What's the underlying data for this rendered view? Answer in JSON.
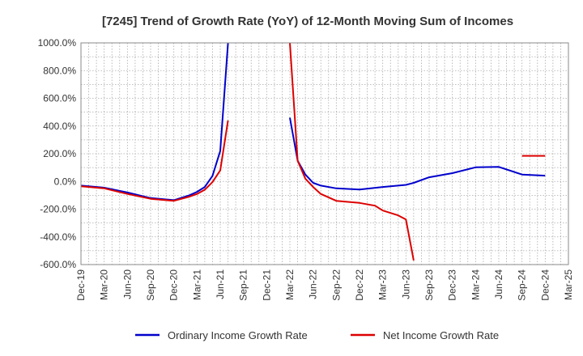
{
  "chart_data": {
    "type": "line",
    "title": "[7245]  Trend of Growth Rate (YoY) of 12-Month Moving Sum of Incomes",
    "xlabel": "",
    "ylabel": "",
    "ylim": [
      -600,
      1000
    ],
    "y_ticks": [
      1000,
      800,
      600,
      400,
      200,
      0,
      -200,
      -400,
      -600
    ],
    "y_tick_labels": [
      "1000.0%",
      "800.0%",
      "600.0%",
      "400.0%",
      "200.0%",
      "0.0%",
      "-200.0%",
      "-400.0%",
      "-600.0%"
    ],
    "x_tick_labels": [
      "Dec-19",
      "Mar-20",
      "Jun-20",
      "Sep-20",
      "Dec-20",
      "Mar-21",
      "Jun-21",
      "Sep-21",
      "Dec-21",
      "Mar-22",
      "Jun-22",
      "Sep-22",
      "Dec-22",
      "Mar-23",
      "Jun-23",
      "Sep-23",
      "Dec-23",
      "Mar-24",
      "Jun-24",
      "Sep-24",
      "Dec-24",
      "Mar-25"
    ],
    "grid": true,
    "legend_position": "bottom",
    "series": [
      {
        "name": "Ordinary Income Growth Rate",
        "color": "#0000cc",
        "points": [
          [
            "Dec-19",
            -30
          ],
          [
            "Mar-20",
            -45
          ],
          [
            "Jun-20",
            -80
          ],
          [
            "Sep-20",
            -120
          ],
          [
            "Dec-20",
            -135
          ],
          [
            "Jan-21",
            -118
          ],
          [
            "Feb-21",
            -100
          ],
          [
            "Mar-21",
            -75
          ],
          [
            "Apr-21",
            -40
          ],
          [
            "May-21",
            40
          ],
          [
            "Jun-21",
            220
          ],
          [
            "Jul-21",
            1000
          ]
        ],
        "points_2": [
          [
            "Mar-22",
            460
          ],
          [
            "Apr-22",
            150
          ],
          [
            "May-22",
            50
          ],
          [
            "Jun-22",
            -10
          ],
          [
            "Jul-22",
            -30
          ],
          [
            "Sep-22",
            -50
          ],
          [
            "Dec-22",
            -58
          ],
          [
            "Mar-23",
            -40
          ],
          [
            "Jun-23",
            -25
          ],
          [
            "Jul-23",
            -10
          ],
          [
            "Sep-23",
            30
          ],
          [
            "Dec-23",
            60
          ],
          [
            "Mar-24",
            102
          ],
          [
            "Jun-24",
            105
          ],
          [
            "Sep-24",
            50
          ],
          [
            "Dec-24",
            42
          ]
        ]
      },
      {
        "name": "Net Income Growth Rate",
        "color": "#dd0000",
        "points": [
          [
            "Dec-19",
            -35
          ],
          [
            "Mar-20",
            -50
          ],
          [
            "Jun-20",
            -90
          ],
          [
            "Sep-20",
            -125
          ],
          [
            "Dec-20",
            -140
          ],
          [
            "Jan-21",
            -125
          ],
          [
            "Feb-21",
            -110
          ],
          [
            "Mar-21",
            -90
          ],
          [
            "Apr-21",
            -60
          ],
          [
            "May-21",
            -5
          ],
          [
            "Jun-21",
            80
          ],
          [
            "Jul-21",
            440
          ]
        ],
        "points_2": [
          [
            "Mar-22",
            1000
          ],
          [
            "Apr-22",
            150
          ],
          [
            "May-22",
            20
          ],
          [
            "Jun-22",
            -40
          ],
          [
            "Jul-22",
            -90
          ],
          [
            "Sep-22",
            -140
          ],
          [
            "Dec-22",
            -155
          ],
          [
            "Feb-23",
            -175
          ],
          [
            "Mar-23",
            -210
          ],
          [
            "May-23",
            -245
          ],
          [
            "Jun-23",
            -275
          ],
          [
            "Jul-23",
            -570
          ]
        ],
        "points_3": [
          [
            "Sep-24",
            185
          ],
          [
            "Dec-24",
            185
          ]
        ]
      }
    ]
  }
}
